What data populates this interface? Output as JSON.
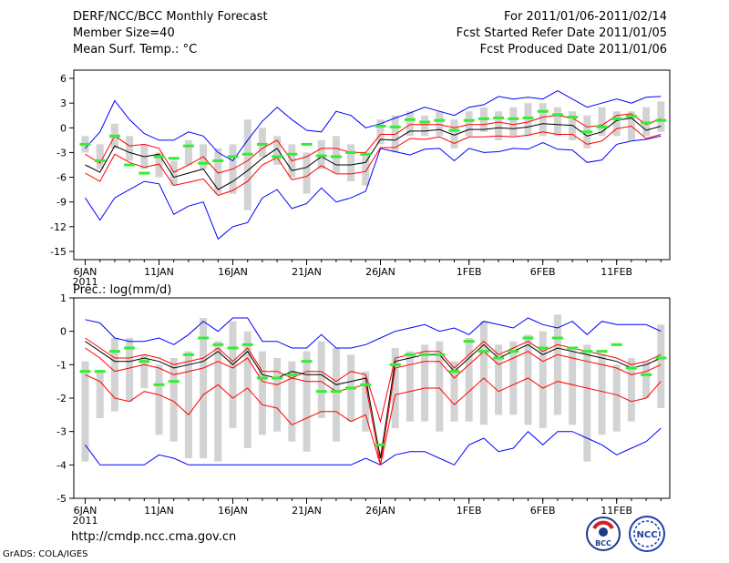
{
  "header": {
    "title": "DERF/NCC/BCC Monthly Forecast",
    "member_size": "Member Size=40",
    "variable": "Mean Surf. Temp.: °C",
    "period": "For 2011/01/06-2011/02/14",
    "start_date": "Fcst Started Refer Date 2011/01/05",
    "produced_date": "Fcst Produced Date 2011/01/06"
  },
  "footer": {
    "url": "http://cmdp.ncc.cma.gov.cn",
    "grads": "GrADS: COLA/IGES",
    "logo1_text": "BCC",
    "logo2_text": "NCC"
  },
  "colors": {
    "envelope": "#0000ff",
    "spread": "#ff0000",
    "mean": "#000000",
    "box": "#d3d3d3",
    "marker": "#33ee33"
  },
  "chart_data": [
    {
      "type": "ensemble_boxplot",
      "name": "temperature",
      "ylabel": "",
      "ylim": [
        -16,
        7
      ],
      "yticks": [
        6,
        3,
        0,
        -3,
        -6,
        -9,
        -12,
        -15
      ],
      "x_count": 40,
      "xticks": [
        {
          "index": 0,
          "label": "6JAN",
          "sub": "2011"
        },
        {
          "index": 5,
          "label": "11JAN"
        },
        {
          "index": 10,
          "label": "16JAN"
        },
        {
          "index": 15,
          "label": "21JAN"
        },
        {
          "index": 20,
          "label": "26JAN"
        },
        {
          "index": 26,
          "label": "1FEB"
        },
        {
          "index": 31,
          "label": "6FEB"
        },
        {
          "index": 36,
          "label": "11FEB"
        }
      ],
      "series": {
        "max": [
          -2.5,
          -0.5,
          3.3,
          1,
          -0.7,
          -1.5,
          -1.5,
          -0.5,
          -1,
          -3,
          -4,
          -1.5,
          0.8,
          2.5,
          1,
          -0.3,
          -0.5,
          2,
          1.5,
          0,
          0.5,
          1.2,
          1.8,
          2.5,
          2,
          1.5,
          2.5,
          2.8,
          3.8,
          3.5,
          3.7,
          3.5,
          4.5,
          3.5,
          2.5,
          3,
          3.5,
          3,
          3.7,
          3.8
        ],
        "upper": [
          -3.2,
          -4.3,
          -1,
          -2.2,
          -2,
          -2.5,
          -5.4,
          -4.5,
          -3.5,
          -5.5,
          -5,
          -4,
          -2.5,
          -1.5,
          -4,
          -3.5,
          -2.5,
          -2.5,
          -3,
          -3,
          -0.8,
          -0.8,
          0.4,
          0.4,
          0.4,
          0,
          0.4,
          0.4,
          0.7,
          0.4,
          0.7,
          1.3,
          1.5,
          1.2,
          0.1,
          0.3,
          1.5,
          1.7,
          0.4,
          1.1
        ],
        "mean": [
          -4.5,
          -5.4,
          -2.2,
          -3,
          -3.5,
          -3.2,
          -6,
          -5.5,
          -5,
          -7.5,
          -6.5,
          -5.2,
          -3.7,
          -2.5,
          -5.2,
          -4.8,
          -3.5,
          -4.5,
          -4.5,
          -4.2,
          -1.4,
          -1.5,
          -0.4,
          -0.4,
          -0.2,
          -0.9,
          -0.2,
          -0.2,
          0,
          -0.1,
          0.1,
          0.5,
          0.4,
          0.3,
          -1,
          -0.5,
          0.9,
          1.2,
          -0.3,
          0.2
        ],
        "lower": [
          -5.5,
          -6.5,
          -3.2,
          -4.2,
          -4.8,
          -4.4,
          -7,
          -6.6,
          -6.2,
          -8.2,
          -7.6,
          -6.5,
          -4.5,
          -3.6,
          -6.3,
          -5.9,
          -4.6,
          -5.6,
          -5.6,
          -5.3,
          -2.4,
          -2.4,
          -1.3,
          -1.4,
          -1.1,
          -1.9,
          -1.1,
          -1.1,
          -1.0,
          -1.1,
          -0.9,
          -0.5,
          -0.8,
          -0.8,
          -2,
          -1.6,
          -0.1,
          0.2,
          -1.3,
          -0.8
        ],
        "min": [
          -8.5,
          -11.2,
          -8.5,
          -7.5,
          -6.5,
          -6.8,
          -10.5,
          -9.5,
          -9,
          -13.5,
          -12,
          -11.5,
          -8.5,
          -7.5,
          -9.8,
          -9.2,
          -7.3,
          -9,
          -8.5,
          -7.7,
          -2.5,
          -2.9,
          -3.3,
          -2.6,
          -2.5,
          -4,
          -2.5,
          -3,
          -2.9,
          -2.5,
          -2.6,
          -1.8,
          -2.6,
          -2.7,
          -4.2,
          -3.9,
          -2,
          -1.6,
          -1.4,
          -1
        ],
        "box_hi": [
          -1,
          -2,
          0.5,
          -1,
          -2,
          -3,
          -4,
          -1.5,
          -2,
          -2.5,
          -2,
          1,
          0,
          -1,
          -2,
          -3,
          -1.5,
          -1,
          -2,
          -3,
          1,
          1.5,
          2,
          1.5,
          2,
          1,
          2,
          2.5,
          2,
          2.5,
          3,
          3,
          2.5,
          2,
          1.5,
          2.5,
          2,
          2,
          2.5,
          3.2
        ],
        "box_lo": [
          -3,
          -5,
          -2.5,
          -4,
          -5,
          -6,
          -7,
          -4.5,
          -5,
          -8,
          -8,
          -10,
          -3.5,
          -4.5,
          -6,
          -8,
          -5,
          -5.5,
          -6.5,
          -7,
          -2,
          -3,
          -1,
          -1,
          -1,
          -2.5,
          -1,
          -0.5,
          -1.5,
          -1,
          -1,
          -1,
          -1,
          -1.5,
          -2.5,
          -1,
          -1,
          -1.5,
          -1,
          -0.5
        ],
        "marker": [
          -2,
          -4,
          -1,
          -4.5,
          -5.5,
          -3.5,
          -3.7,
          -2.2,
          -4.3,
          -4,
          -3.5,
          -3.2,
          -2,
          -3.5,
          -3.2,
          -2,
          -3.4,
          -3.5,
          -3,
          -3.2,
          0.2,
          0.1,
          1,
          0.7,
          0.9,
          -0.3,
          0.9,
          1.1,
          1.2,
          1.1,
          1.2,
          2,
          1.6,
          1.3,
          -0.5,
          0.1,
          1.1,
          1.4,
          0.6,
          0.9
        ]
      }
    },
    {
      "type": "ensemble_boxplot",
      "name": "precipitation",
      "ylabel": "Prec.: log(mm/d)",
      "ylim": [
        -5,
        1
      ],
      "yticks": [
        1,
        0,
        -1,
        -2,
        -3,
        -4,
        -5
      ],
      "x_count": 40,
      "xticks": [
        {
          "index": 0,
          "label": "6JAN",
          "sub": "2011"
        },
        {
          "index": 5,
          "label": "11JAN"
        },
        {
          "index": 10,
          "label": "16JAN"
        },
        {
          "index": 15,
          "label": "21JAN"
        },
        {
          "index": 20,
          "label": "26JAN"
        },
        {
          "index": 26,
          "label": "1FEB"
        },
        {
          "index": 31,
          "label": "6FEB"
        },
        {
          "index": 36,
          "label": "11FEB"
        }
      ],
      "series": {
        "max": [
          0.35,
          0.25,
          -0.2,
          -0.3,
          -0.3,
          -0.2,
          -0.4,
          -0.1,
          0.3,
          0,
          0.4,
          0.4,
          -0.3,
          -0.3,
          -0.5,
          -0.5,
          -0.1,
          -0.5,
          -0.5,
          -0.4,
          -0.2,
          0,
          0.1,
          0.2,
          0,
          0.1,
          -0.1,
          0.3,
          0.2,
          0.1,
          0.4,
          0.2,
          0.1,
          0.3,
          -0.1,
          0.3,
          0.2,
          0.2,
          0.2,
          0
        ],
        "upper": [
          -0.2,
          -0.5,
          -0.8,
          -0.8,
          -0.7,
          -0.8,
          -1,
          -0.9,
          -0.8,
          -0.5,
          -0.9,
          -0.5,
          -1.2,
          -1.2,
          -1.4,
          -1.2,
          -1.2,
          -1.5,
          -1.2,
          -1.3,
          -2.7,
          -0.8,
          -0.7,
          -0.6,
          -0.6,
          -1.1,
          -0.7,
          -0.3,
          -0.7,
          -0.5,
          -0.3,
          -0.6,
          -0.4,
          -0.5,
          -0.6,
          -0.7,
          -0.8,
          -1,
          -0.9,
          -0.7
        ],
        "mean": [
          -0.3,
          -0.6,
          -0.9,
          -0.9,
          -0.8,
          -0.9,
          -1.1,
          -1,
          -0.9,
          -0.6,
          -1,
          -0.6,
          -1.3,
          -1.4,
          -1.2,
          -1.3,
          -1.3,
          -1.6,
          -1.5,
          -1.4,
          -3.8,
          -0.9,
          -0.8,
          -0.7,
          -0.7,
          -1.2,
          -0.8,
          -0.4,
          -0.8,
          -0.6,
          -0.4,
          -0.7,
          -0.5,
          -0.6,
          -0.7,
          -0.8,
          -0.9,
          -1.1,
          -1,
          -0.8
        ],
        "lower": [
          -0.5,
          -0.8,
          -1.2,
          -1.1,
          -1,
          -1.1,
          -1.3,
          -1.2,
          -1.1,
          -0.9,
          -1.1,
          -0.8,
          -1.5,
          -1.6,
          -1.4,
          -1.5,
          -1.5,
          -1.8,
          -1.7,
          -1.6,
          -4,
          -1.1,
          -1,
          -0.9,
          -0.9,
          -1.4,
          -1,
          -0.6,
          -1,
          -0.8,
          -0.6,
          -0.9,
          -0.7,
          -0.8,
          -0.9,
          -1,
          -1.1,
          -1.3,
          -1.2,
          -1
        ],
        "lowest": [
          -1.3,
          -1.5,
          -2,
          -2.1,
          -1.8,
          -1.9,
          -2.1,
          -2.5,
          -1.9,
          -1.6,
          -2,
          -1.7,
          -2.2,
          -2.3,
          -2.8,
          -2.6,
          -2.4,
          -2.4,
          -2.7,
          -2.5,
          -4,
          -1.9,
          -1.8,
          -1.7,
          -1.7,
          -2.2,
          -1.8,
          -1.4,
          -1.8,
          -1.6,
          -1.4,
          -1.7,
          -1.5,
          -1.6,
          -1.7,
          -1.8,
          -1.9,
          -2.1,
          -2,
          -1.5
        ],
        "min": [
          -3.4,
          -4,
          -4,
          -4,
          -4,
          -3.7,
          -3.8,
          -4,
          -4,
          -4,
          -4,
          -4,
          -4,
          -4,
          -4,
          -4,
          -4,
          -4,
          -4,
          -3.8,
          -4,
          -3.7,
          -3.6,
          -3.6,
          -3.8,
          -4,
          -3.4,
          -3.2,
          -3.6,
          -3.5,
          -3,
          -3.4,
          -3,
          -3,
          -3.2,
          -3.4,
          -3.7,
          -3.5,
          -3.3,
          -2.9
        ],
        "box_hi": [
          -0.9,
          -1.2,
          -0.2,
          -0.2,
          -0.7,
          -1,
          -0.8,
          -0.6,
          0.4,
          -0.3,
          0.3,
          0,
          -0.6,
          -0.8,
          -0.9,
          -0.6,
          -0.3,
          -0.5,
          -0.7,
          -1.2,
          -3.6,
          -0.5,
          -0.6,
          -0.4,
          -0.3,
          -0.9,
          -0.2,
          0.3,
          -0.4,
          -0.3,
          -0.1,
          0,
          0.5,
          -0.5,
          -0.4,
          -0.7,
          -1,
          -0.8,
          -0.9,
          0.2
        ],
        "box_lo": [
          -3.9,
          -2.6,
          -2.4,
          -2.1,
          -1.7,
          -3.1,
          -3.3,
          -3.8,
          -3.8,
          -3.9,
          -2.9,
          -3.5,
          -3.1,
          -3,
          -3.3,
          -3.6,
          -2.6,
          -3.3,
          -2.7,
          -3,
          -3.8,
          -2.9,
          -2.7,
          -2.7,
          -3,
          -2.7,
          -2.7,
          -2.8,
          -2.5,
          -2.5,
          -2.8,
          -2.9,
          -2.5,
          -2.8,
          -3.9,
          -3.1,
          -3,
          -2.7,
          -2,
          -2.3
        ],
        "marker": [
          -1.2,
          -1.2,
          -0.6,
          -0.5,
          -0.9,
          -1.6,
          -1.5,
          -0.7,
          -0.2,
          -0.4,
          -0.5,
          -0.4,
          -1.4,
          -1.4,
          -1.3,
          -0.9,
          -1.8,
          -1.8,
          -1.7,
          -1.6,
          -3.4,
          -1,
          -0.7,
          -0.7,
          -0.7,
          -1.2,
          -0.3,
          -0.6,
          -0.8,
          -0.6,
          -0.2,
          -0.5,
          -0.2,
          -0.5,
          -0.6,
          -0.6,
          -0.4,
          -1.1,
          -1.3,
          -0.8
        ]
      }
    }
  ]
}
